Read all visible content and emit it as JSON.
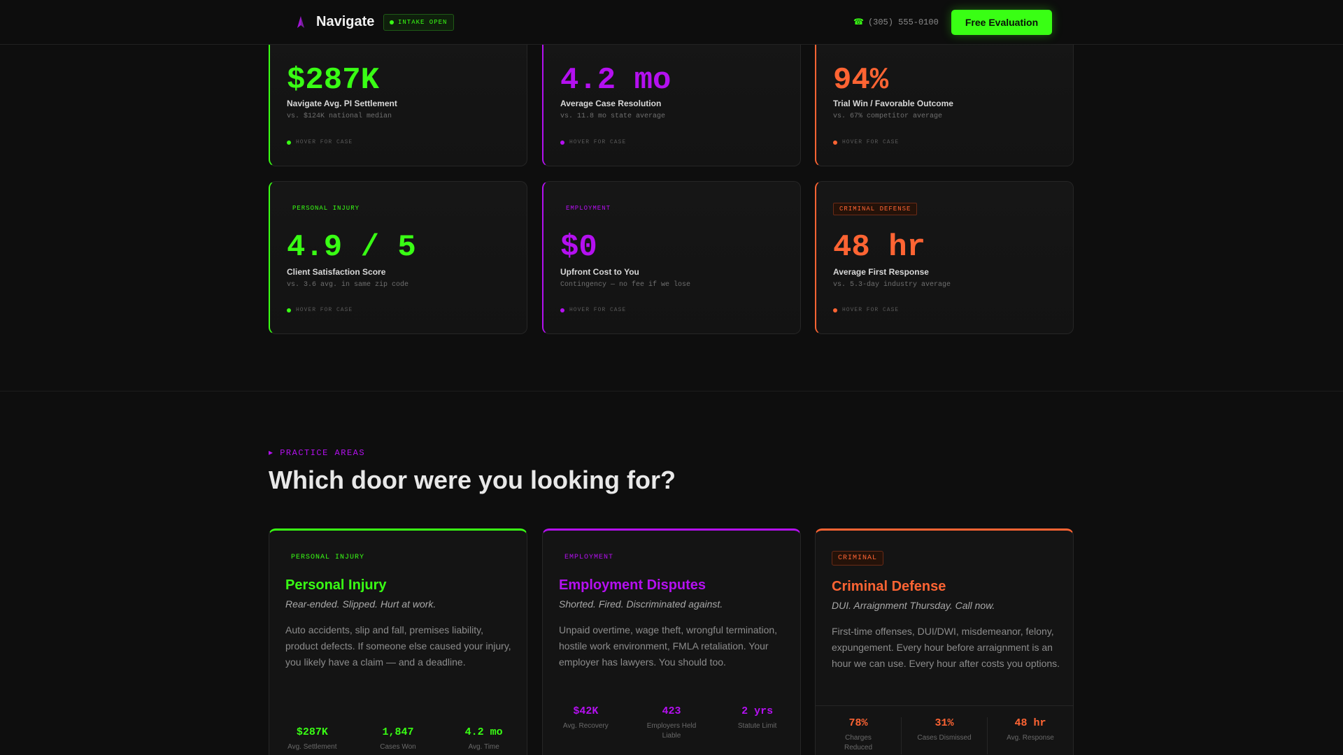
{
  "header": {
    "brand": "Navigate",
    "intake_status": "INTAKE OPEN",
    "phone": "(305) 555-0100",
    "phone_icon": "☎",
    "cta": "Free Evaluation"
  },
  "stats_row1": [
    {
      "value": "$287K",
      "label": "Navigate Avg. PI Settlement",
      "compare": "vs. $124K national median",
      "hint": "HOVER FOR CASE"
    },
    {
      "value": "4.2 mo",
      "label": "Average Case Resolution",
      "compare": "vs. 11.8 mo state average",
      "hint": "HOVER FOR CASE"
    },
    {
      "value": "94%",
      "label": "Trial Win / Favorable Outcome",
      "compare": "vs. 67% competitor average",
      "hint": "HOVER FOR CASE"
    }
  ],
  "stats_row2": [
    {
      "tag": "PERSONAL INJURY",
      "value": "4.9 / 5",
      "label": "Client Satisfaction Score",
      "compare": "vs. 3.6 avg. in same zip code",
      "hint": "HOVER FOR CASE"
    },
    {
      "tag": "EMPLOYMENT",
      "value": "$0",
      "label": "Upfront Cost to You",
      "compare": "Contingency — no fee if we lose",
      "hint": "HOVER FOR CASE"
    },
    {
      "tag": "CRIMINAL DEFENSE",
      "value": "48 hr",
      "label": "Average First Response",
      "compare": "vs. 5.3-day industry average",
      "hint": "HOVER FOR CASE"
    }
  ],
  "practice": {
    "eyebrow": "▸ PRACTICE AREAS",
    "title": "Which door were you looking for?",
    "cards": [
      {
        "tag": "PERSONAL INJURY",
        "title": "Personal Injury",
        "tagline": "Rear-ended. Slipped. Hurt at work.",
        "description": "Auto accidents, slip and fall, premises liability, product defects. If someone else caused your injury, you likely have a claim — and a deadline.",
        "stats": [
          {
            "value": "$287K",
            "label": "Avg. Settlement"
          },
          {
            "value": "1,847",
            "label": "Cases Won"
          },
          {
            "value": "4.2 mo",
            "label": "Avg. Time"
          }
        ]
      },
      {
        "tag": "EMPLOYMENT",
        "title": "Employment Disputes",
        "tagline": "Shorted. Fired. Discriminated against.",
        "description": "Unpaid overtime, wage theft, wrongful termination, hostile work environment, FMLA retaliation. Your employer has lawyers. You should too.",
        "stats": [
          {
            "value": "$42K",
            "label": "Avg. Recovery"
          },
          {
            "value": "423",
            "label": "Employers Held Liable"
          },
          {
            "value": "2 yrs",
            "label": "Statute Limit"
          }
        ]
      },
      {
        "tag": "CRIMINAL",
        "title": "Criminal Defense",
        "tagline": "DUI. Arraignment Thursday. Call now.",
        "description": "First-time offenses, DUI/DWI, misdemeanor, felony, expungement. Every hour before arraignment is an hour we can use. Every hour after costs you options.",
        "stats": [
          {
            "value": "78%",
            "label": "Charges Reduced"
          },
          {
            "value": "31%",
            "label": "Cases Dismissed"
          },
          {
            "value": "48 hr",
            "label": "Avg. Response"
          }
        ]
      }
    ]
  },
  "colors": {
    "green": "#39ff14",
    "purple": "#b410f0",
    "orange": "#ff6433",
    "background": "#0e0e0e"
  },
  "icons": {
    "logo": "compass-icon",
    "phone": "phone-icon"
  }
}
